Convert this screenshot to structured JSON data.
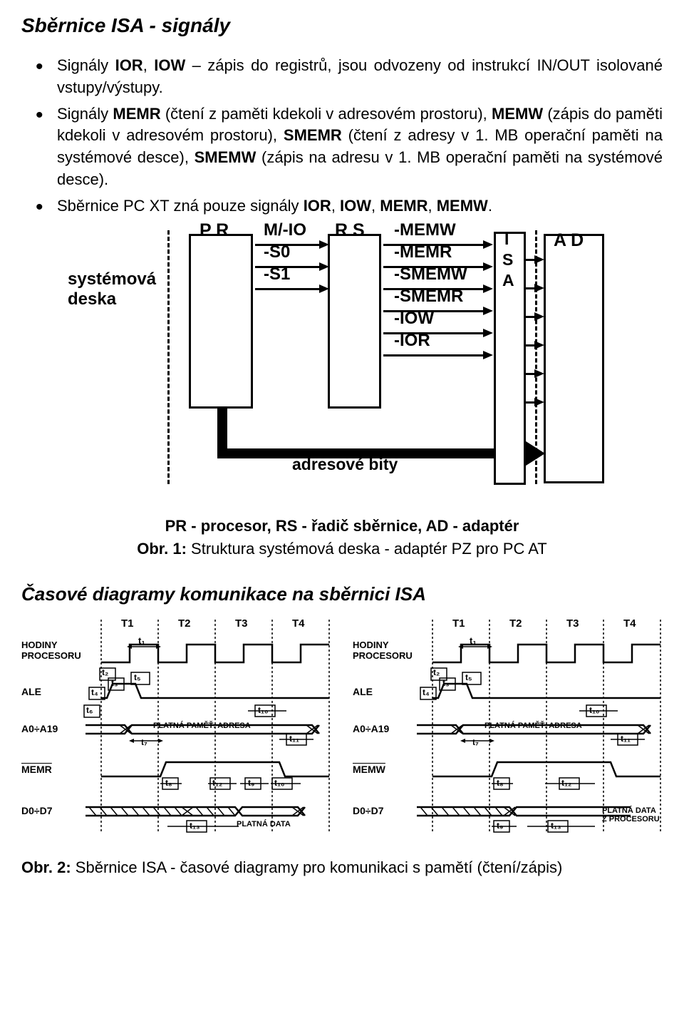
{
  "title": "Sběrnice ISA - signály",
  "bullets": [
    {
      "html": "Signály <b>IOR</b>, <b>IOW</b> – zápis do registrů, jsou odvozeny od instrukcí IN/OUT isolované vstupy/výstupy."
    },
    {
      "html": "Signály <b>MEMR</b> (čtení z paměti kdekoli v adresovém prostoru), <b>MEMW</b> (zápis do paměti kdekoli v  adresovém prostoru), <b>SMEMR</b> (čtení z adresy v 1. MB operační paměti na systémové desce), <b>SMEMW</b> (zápis na adresu v 1. MB operační paměti na systémové desce)."
    },
    {
      "html": "Sběrnice PC XT zná pouze signály <b>IOR</b>, <b>IOW</b>, <b>MEMR</b>, <b>MEMW</b>."
    }
  ],
  "diagram": {
    "systemova": "systémová\ndeska",
    "pr": "P R",
    "rs": "R S",
    "isa": [
      "I",
      "S",
      "A"
    ],
    "ad": "A D",
    "sig_left": [
      "M/-IO",
      "-S0",
      "-S1"
    ],
    "sig_right": [
      "-MEMW",
      "-MEMR",
      "-SMEMW",
      "-SMEMR",
      "-IOW",
      "-IOR"
    ],
    "adresove": "adresové bity",
    "caption1": "PR - procesor, RS - řadič sběrnice, AD - adaptér",
    "caption2_label": "Obr. 1:",
    "caption2_text": " Struktura systémová deska - adaptér PZ pro PC AT"
  },
  "heading2": "Časové diagramy komunikace na sběrnici ISA",
  "timing": {
    "cycles": [
      "T1",
      "T2",
      "T3",
      "T4"
    ],
    "t_marks": [
      "t₁",
      "t₂",
      "t₃",
      "t₄",
      "t₅",
      "t₆",
      "t₇",
      "t₈",
      "t₉",
      "t₁₀",
      "t₁₁",
      "t₁₂",
      "t₁₃"
    ],
    "rows_left": [
      "HODINY\nPROCESORU",
      "ALE",
      "A0÷A19",
      "MEMR",
      "D0÷D7"
    ],
    "rows_right": [
      "HODINY\nPROCESORU",
      "ALE",
      "A0÷A19",
      "MEMW",
      "D0÷D7"
    ],
    "valid_addr": "PLATNÁ PAMĚŤ. ADRESA",
    "valid_data": "PLATNÁ DATA",
    "valid_data_right": "PLATNÁ DATA\nZ PROCESORU"
  },
  "final_caption_label": "Obr. 2:",
  "final_caption_text": " Sběrnice ISA - časové diagramy pro komunikaci s pamětí (čtení/zápis)",
  "colors": {
    "bg": "#ffffff",
    "text": "#000000"
  }
}
